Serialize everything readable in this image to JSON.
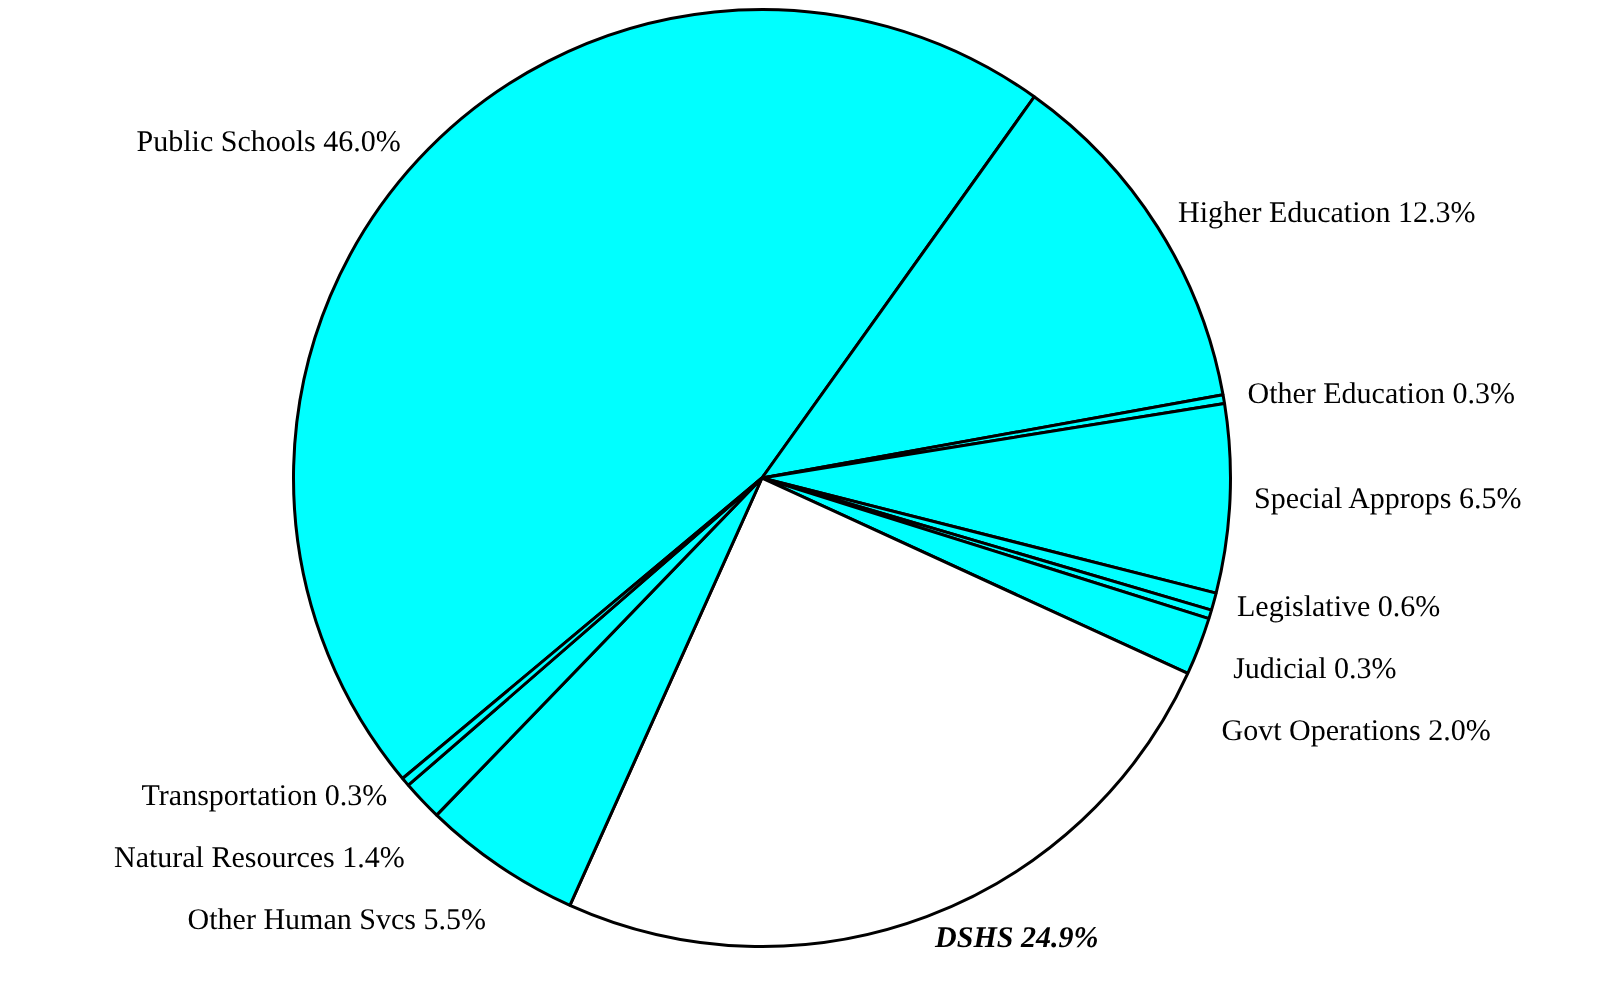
{
  "chart_data": {
    "type": "pie",
    "categories": [
      "Public Schools",
      "Higher Education",
      "Other Education",
      "Special Approps",
      "Legislative",
      "Judicial",
      "Govt Operations",
      "DSHS",
      "Other Human Svcs",
      "Natural Resources",
      "Transportation"
    ],
    "values": [
      46.0,
      12.3,
      0.3,
      6.5,
      0.6,
      0.3,
      2.0,
      24.9,
      5.5,
      1.4,
      0.3
    ],
    "value_labels": [
      "46.0%",
      "12.3%",
      "0.3%",
      "6.5%",
      "0.6%",
      "0.3%",
      "2.0%",
      "24.9%",
      "5.5%",
      "1.4%",
      "0.3%"
    ],
    "colors": [
      "#00ffff",
      "#00ffff",
      "#00ffff",
      "#00ffff",
      "#00ffff",
      "#00ffff",
      "#00ffff",
      "#ffffff",
      "#00ffff",
      "#00ffff",
      "#00ffff"
    ],
    "legend": false
  }
}
